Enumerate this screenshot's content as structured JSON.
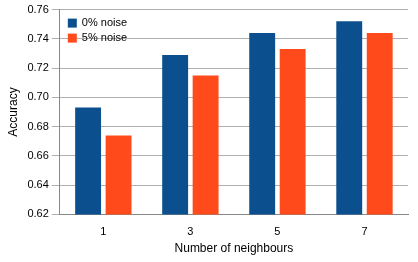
{
  "chart_data": {
    "type": "bar",
    "x_label": "Number of neighbours",
    "y_label": "Accuracy",
    "categories": [
      "1",
      "3",
      "5",
      "7"
    ],
    "series": [
      {
        "name": "0% noise",
        "color": "#0b4f8f",
        "values": [
          0.693,
          0.729,
          0.744,
          0.752
        ]
      },
      {
        "name": "5% noise",
        "color": "#ff4a1c",
        "values": [
          0.674,
          0.715,
          0.733,
          0.744
        ]
      }
    ],
    "ylim": [
      0.62,
      0.76
    ],
    "yticks": [
      0.62,
      0.64,
      0.66,
      0.68,
      {
        "value": 0.7,
        "label": "0.70"
      },
      0.72,
      0.74,
      0.76
    ],
    "grid": true,
    "legend": "top-left"
  }
}
